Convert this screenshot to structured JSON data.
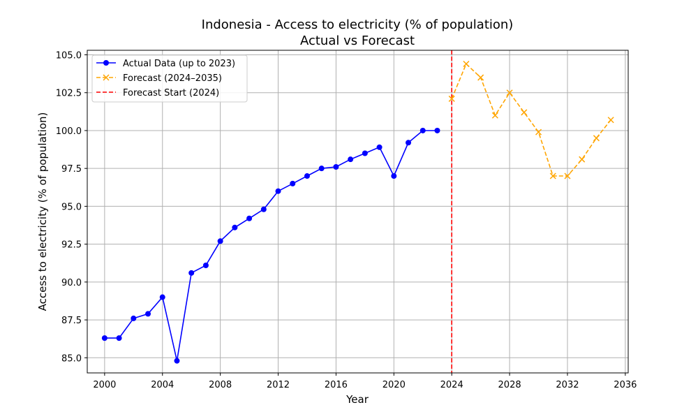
{
  "chart_data": {
    "type": "line",
    "title": "Indonesia - Access to electricity (% of population)",
    "subtitle": "Actual vs Forecast",
    "xlabel": "Year",
    "ylabel": "Access to electricity (% of population)",
    "xlim": [
      1998.8,
      2036.2
    ],
    "ylim": [
      84.0,
      105.3
    ],
    "xticks": [
      2000,
      2004,
      2008,
      2012,
      2016,
      2020,
      2024,
      2028,
      2032,
      2036
    ],
    "yticks": [
      85.0,
      87.5,
      90.0,
      92.5,
      95.0,
      97.5,
      100.0,
      102.5,
      105.0
    ],
    "grid": true,
    "legend_position": "top-left",
    "series": [
      {
        "name": "Actual Data (up to 2023)",
        "style": "solid-circle",
        "color": "#0000ff",
        "x": [
          2000,
          2001,
          2002,
          2003,
          2004,
          2005,
          2006,
          2007,
          2008,
          2009,
          2010,
          2011,
          2012,
          2013,
          2014,
          2015,
          2016,
          2017,
          2018,
          2019,
          2020,
          2021,
          2022,
          2023
        ],
        "y": [
          86.3,
          86.3,
          87.6,
          87.9,
          89.0,
          84.8,
          90.6,
          91.1,
          92.7,
          93.6,
          94.2,
          94.8,
          96.0,
          96.5,
          97.0,
          97.5,
          97.6,
          98.1,
          98.5,
          98.9,
          97.0,
          99.2,
          100.0,
          100.0
        ]
      },
      {
        "name": "Forecast (2024–2035)",
        "style": "dashed-x",
        "color": "#ffa500",
        "x": [
          2024,
          2025,
          2026,
          2027,
          2028,
          2029,
          2030,
          2031,
          2032,
          2033,
          2034,
          2035
        ],
        "y": [
          102.1,
          104.4,
          103.5,
          101.0,
          102.5,
          101.2,
          99.9,
          97.0,
          97.0,
          98.1,
          99.5,
          100.7
        ]
      }
    ],
    "vline": {
      "name": "Forecast Start (2024)",
      "x": 2024,
      "color": "#ff0000",
      "style": "dashed"
    }
  }
}
